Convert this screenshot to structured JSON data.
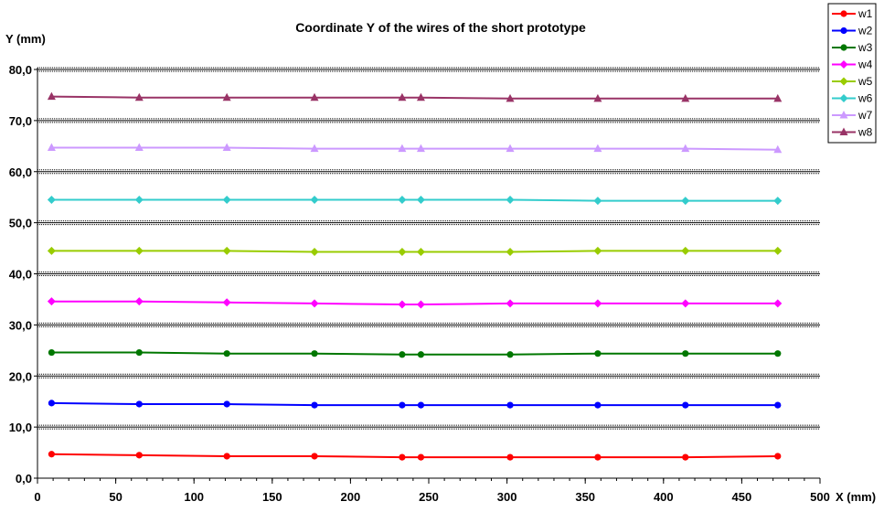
{
  "chart_data": {
    "type": "line",
    "title": "Coordinate Y of the wires of the short prototype",
    "xlabel": "X (mm)",
    "ylabel": "Y (mm)",
    "xlim": [
      0,
      500
    ],
    "ylim": [
      0,
      80
    ],
    "x_ticks": [
      "0",
      "50",
      "100",
      "150",
      "200",
      "250",
      "300",
      "350",
      "400",
      "450",
      "500"
    ],
    "y_ticks": [
      "0,0",
      "10,0",
      "20,0",
      "30,0",
      "40,0",
      "50,0",
      "60,0",
      "70,0",
      "80,0"
    ],
    "grid": true,
    "legend_position": "top-right",
    "x": [
      9,
      65,
      121,
      177,
      233,
      245,
      302,
      358,
      414,
      473
    ],
    "series": [
      {
        "name": "w1",
        "color": "#ff0000",
        "marker": "circle",
        "values": [
          4.7,
          4.5,
          4.3,
          4.3,
          4.1,
          4.1,
          4.1,
          4.1,
          4.1,
          4.3
        ]
      },
      {
        "name": "w2",
        "color": "#0000ff",
        "marker": "circle",
        "values": [
          14.7,
          14.5,
          14.5,
          14.3,
          14.3,
          14.3,
          14.3,
          14.3,
          14.3,
          14.3
        ]
      },
      {
        "name": "w3",
        "color": "#007700",
        "marker": "circle",
        "values": [
          24.6,
          24.6,
          24.4,
          24.4,
          24.2,
          24.2,
          24.2,
          24.4,
          24.4,
          24.4
        ]
      },
      {
        "name": "w4",
        "color": "#ff00ff",
        "marker": "diamond",
        "values": [
          34.6,
          34.6,
          34.4,
          34.2,
          34.0,
          34.0,
          34.2,
          34.2,
          34.2,
          34.2
        ]
      },
      {
        "name": "w5",
        "color": "#99cc00",
        "marker": "diamond",
        "values": [
          44.5,
          44.5,
          44.5,
          44.3,
          44.3,
          44.3,
          44.3,
          44.5,
          44.5,
          44.5
        ]
      },
      {
        "name": "w6",
        "color": "#33cccc",
        "marker": "diamond",
        "values": [
          54.5,
          54.5,
          54.5,
          54.5,
          54.5,
          54.5,
          54.5,
          54.3,
          54.3,
          54.3
        ]
      },
      {
        "name": "w7",
        "color": "#cc99ff",
        "marker": "triangle",
        "values": [
          64.7,
          64.7,
          64.7,
          64.5,
          64.5,
          64.5,
          64.5,
          64.5,
          64.5,
          64.3
        ]
      },
      {
        "name": "w8",
        "color": "#993366",
        "marker": "triangle",
        "values": [
          74.7,
          74.5,
          74.5,
          74.5,
          74.5,
          74.5,
          74.3,
          74.3,
          74.3,
          74.3
        ]
      }
    ]
  }
}
